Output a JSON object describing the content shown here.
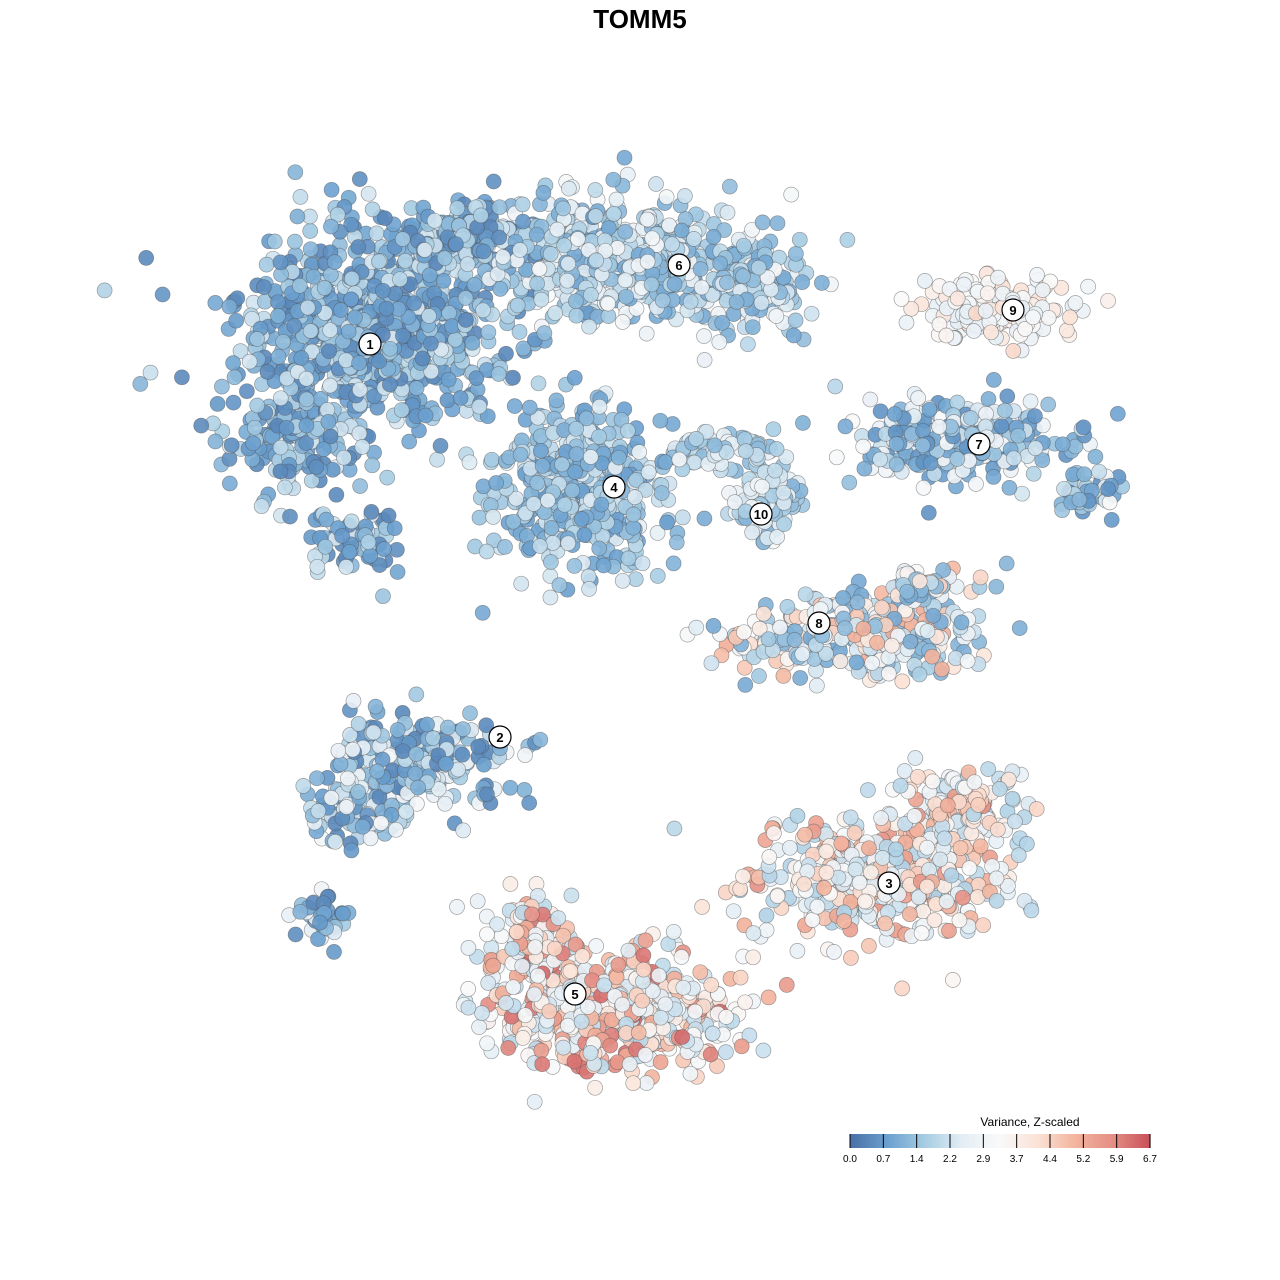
{
  "chart_data": {
    "type": "scatter",
    "title": "TOMM5",
    "xlabel": "",
    "ylabel": "",
    "colorbar": {
      "title": "Variance, Z-scaled",
      "min": 0.0,
      "max": 6.7,
      "ticks": [
        "0.0",
        "0.7",
        "1.4",
        "2.2",
        "2.9",
        "3.7",
        "4.4",
        "5.2",
        "5.9",
        "6.7"
      ],
      "colors": [
        "#4a6fa5",
        "#6aa0cf",
        "#a6cce3",
        "#e4eef5",
        "#f9f9f9",
        "#fbe2d6",
        "#f3b49d",
        "#e48e84",
        "#c9505a"
      ]
    },
    "clusters": [
      {
        "label": "1",
        "value_range": [
          0.4,
          2.4
        ]
      },
      {
        "label": "2",
        "value_range": [
          0.4,
          3.2
        ]
      },
      {
        "label": "3",
        "value_range": [
          1.8,
          5.8
        ]
      },
      {
        "label": "4",
        "value_range": [
          0.8,
          2.6
        ]
      },
      {
        "label": "5",
        "value_range": [
          2.0,
          6.4
        ]
      },
      {
        "label": "6",
        "value_range": [
          1.0,
          3.2
        ]
      },
      {
        "label": "7",
        "value_range": [
          0.6,
          3.4
        ]
      },
      {
        "label": "8",
        "value_range": [
          1.0,
          5.2
        ]
      },
      {
        "label": "9",
        "value_range": [
          2.6,
          4.4
        ]
      },
      {
        "label": "10",
        "value_range": [
          1.2,
          3.2
        ]
      }
    ],
    "grid": false,
    "legend_position": "bottom-right"
  }
}
